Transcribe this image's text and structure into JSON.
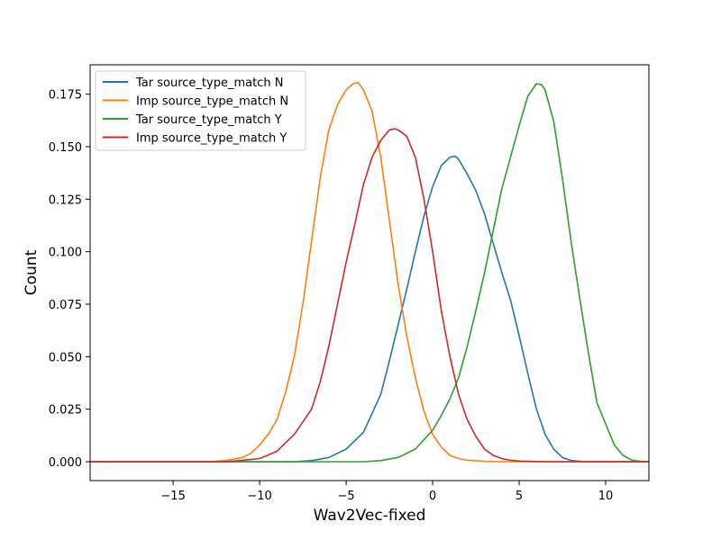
{
  "chart_data": {
    "type": "line",
    "title": "",
    "xlabel": "Wav2Vec-fixed",
    "ylabel": "Count",
    "xlim": [
      -19.8,
      12.5
    ],
    "ylim": [
      -0.009,
      0.189
    ],
    "xticks": [
      -15,
      -10,
      -5,
      0,
      5,
      10
    ],
    "xtick_labels": [
      "−15",
      "−10",
      "−5",
      "0",
      "5",
      "10"
    ],
    "yticks": [
      0.0,
      0.025,
      0.05,
      0.075,
      0.1,
      0.125,
      0.15,
      0.175
    ],
    "ytick_labels": [
      "0.000",
      "0.025",
      "0.050",
      "0.075",
      "0.100",
      "0.125",
      "0.150",
      "0.175"
    ],
    "grid": false,
    "legend_position": "upper-left",
    "series": [
      {
        "name": "Tar source_type_match N",
        "color": "#1f77b4",
        "x": [
          -19.8,
          -8,
          -7,
          -6,
          -5,
          -4,
          -3,
          -2.5,
          -2,
          -1.5,
          -1,
          -0.5,
          0,
          0.5,
          1,
          1.3,
          1.5,
          2,
          2.5,
          3,
          3.5,
          4,
          4.5,
          5,
          5.5,
          6,
          6.5,
          7,
          7.5,
          8,
          8.5,
          9,
          12.5
        ],
        "y": [
          0.0,
          0.0,
          0.0005,
          0.002,
          0.006,
          0.014,
          0.032,
          0.048,
          0.065,
          0.082,
          0.1,
          0.117,
          0.131,
          0.141,
          0.145,
          0.1455,
          0.144,
          0.137,
          0.129,
          0.118,
          0.104,
          0.09,
          0.077,
          0.06,
          0.042,
          0.025,
          0.013,
          0.006,
          0.002,
          0.0006,
          0.0002,
          0.0,
          0.0
        ]
      },
      {
        "name": "Imp source_type_match N",
        "color": "#ff7f0e",
        "x": [
          -19.8,
          -13,
          -12,
          -11,
          -10.5,
          -10,
          -9.5,
          -9,
          -8.5,
          -8,
          -7.5,
          -7,
          -6.5,
          -6,
          -5.5,
          -5,
          -4.6,
          -4.3,
          -4,
          -3.5,
          -3,
          -2.5,
          -2,
          -1.5,
          -1,
          -0.5,
          0,
          0.5,
          1,
          1.5,
          2,
          3,
          4,
          12.5
        ],
        "y": [
          0.0,
          0.0,
          0.0005,
          0.002,
          0.004,
          0.008,
          0.013,
          0.02,
          0.033,
          0.05,
          0.075,
          0.105,
          0.135,
          0.158,
          0.17,
          0.177,
          0.18,
          0.1805,
          0.177,
          0.167,
          0.145,
          0.115,
          0.085,
          0.06,
          0.04,
          0.024,
          0.013,
          0.007,
          0.003,
          0.0015,
          0.0007,
          0.0002,
          0.0,
          0.0
        ]
      },
      {
        "name": "Tar source_type_match Y",
        "color": "#2ca02c",
        "x": [
          -19.8,
          -4,
          -3,
          -2,
          -1,
          0,
          0.5,
          1,
          1.5,
          2,
          2.5,
          3,
          3.5,
          4,
          4.5,
          5,
          5.5,
          6,
          6.3,
          6.5,
          7,
          7.5,
          8,
          8.5,
          9,
          9.5,
          10,
          10.5,
          11,
          11.5,
          12,
          12.5
        ],
        "y": [
          0.0,
          0.0,
          0.0005,
          0.002,
          0.006,
          0.015,
          0.022,
          0.03,
          0.04,
          0.055,
          0.072,
          0.09,
          0.11,
          0.13,
          0.145,
          0.16,
          0.174,
          0.18,
          0.1795,
          0.177,
          0.162,
          0.135,
          0.105,
          0.078,
          0.052,
          0.028,
          0.018,
          0.008,
          0.003,
          0.0008,
          0.0002,
          0.0
        ]
      },
      {
        "name": "Imp source_type_match Y",
        "color": "#d62728",
        "x": [
          -19.8,
          -12,
          -11,
          -10,
          -9,
          -8,
          -7,
          -6.5,
          -6,
          -5.5,
          -5,
          -4.5,
          -4,
          -3.5,
          -3,
          -2.5,
          -2.2,
          -2,
          -1.5,
          -1,
          -0.5,
          0,
          0.5,
          1,
          1.5,
          2,
          2.5,
          3,
          3.5,
          4,
          4.5,
          5,
          6,
          7,
          12.5
        ],
        "y": [
          0.0,
          0.0,
          0.0006,
          0.0015,
          0.005,
          0.013,
          0.025,
          0.038,
          0.055,
          0.075,
          0.095,
          0.113,
          0.132,
          0.145,
          0.153,
          0.158,
          0.1585,
          0.158,
          0.155,
          0.145,
          0.125,
          0.1,
          0.072,
          0.05,
          0.032,
          0.02,
          0.012,
          0.006,
          0.003,
          0.0015,
          0.0007,
          0.0003,
          0.0001,
          0.0,
          0.0
        ]
      }
    ]
  }
}
